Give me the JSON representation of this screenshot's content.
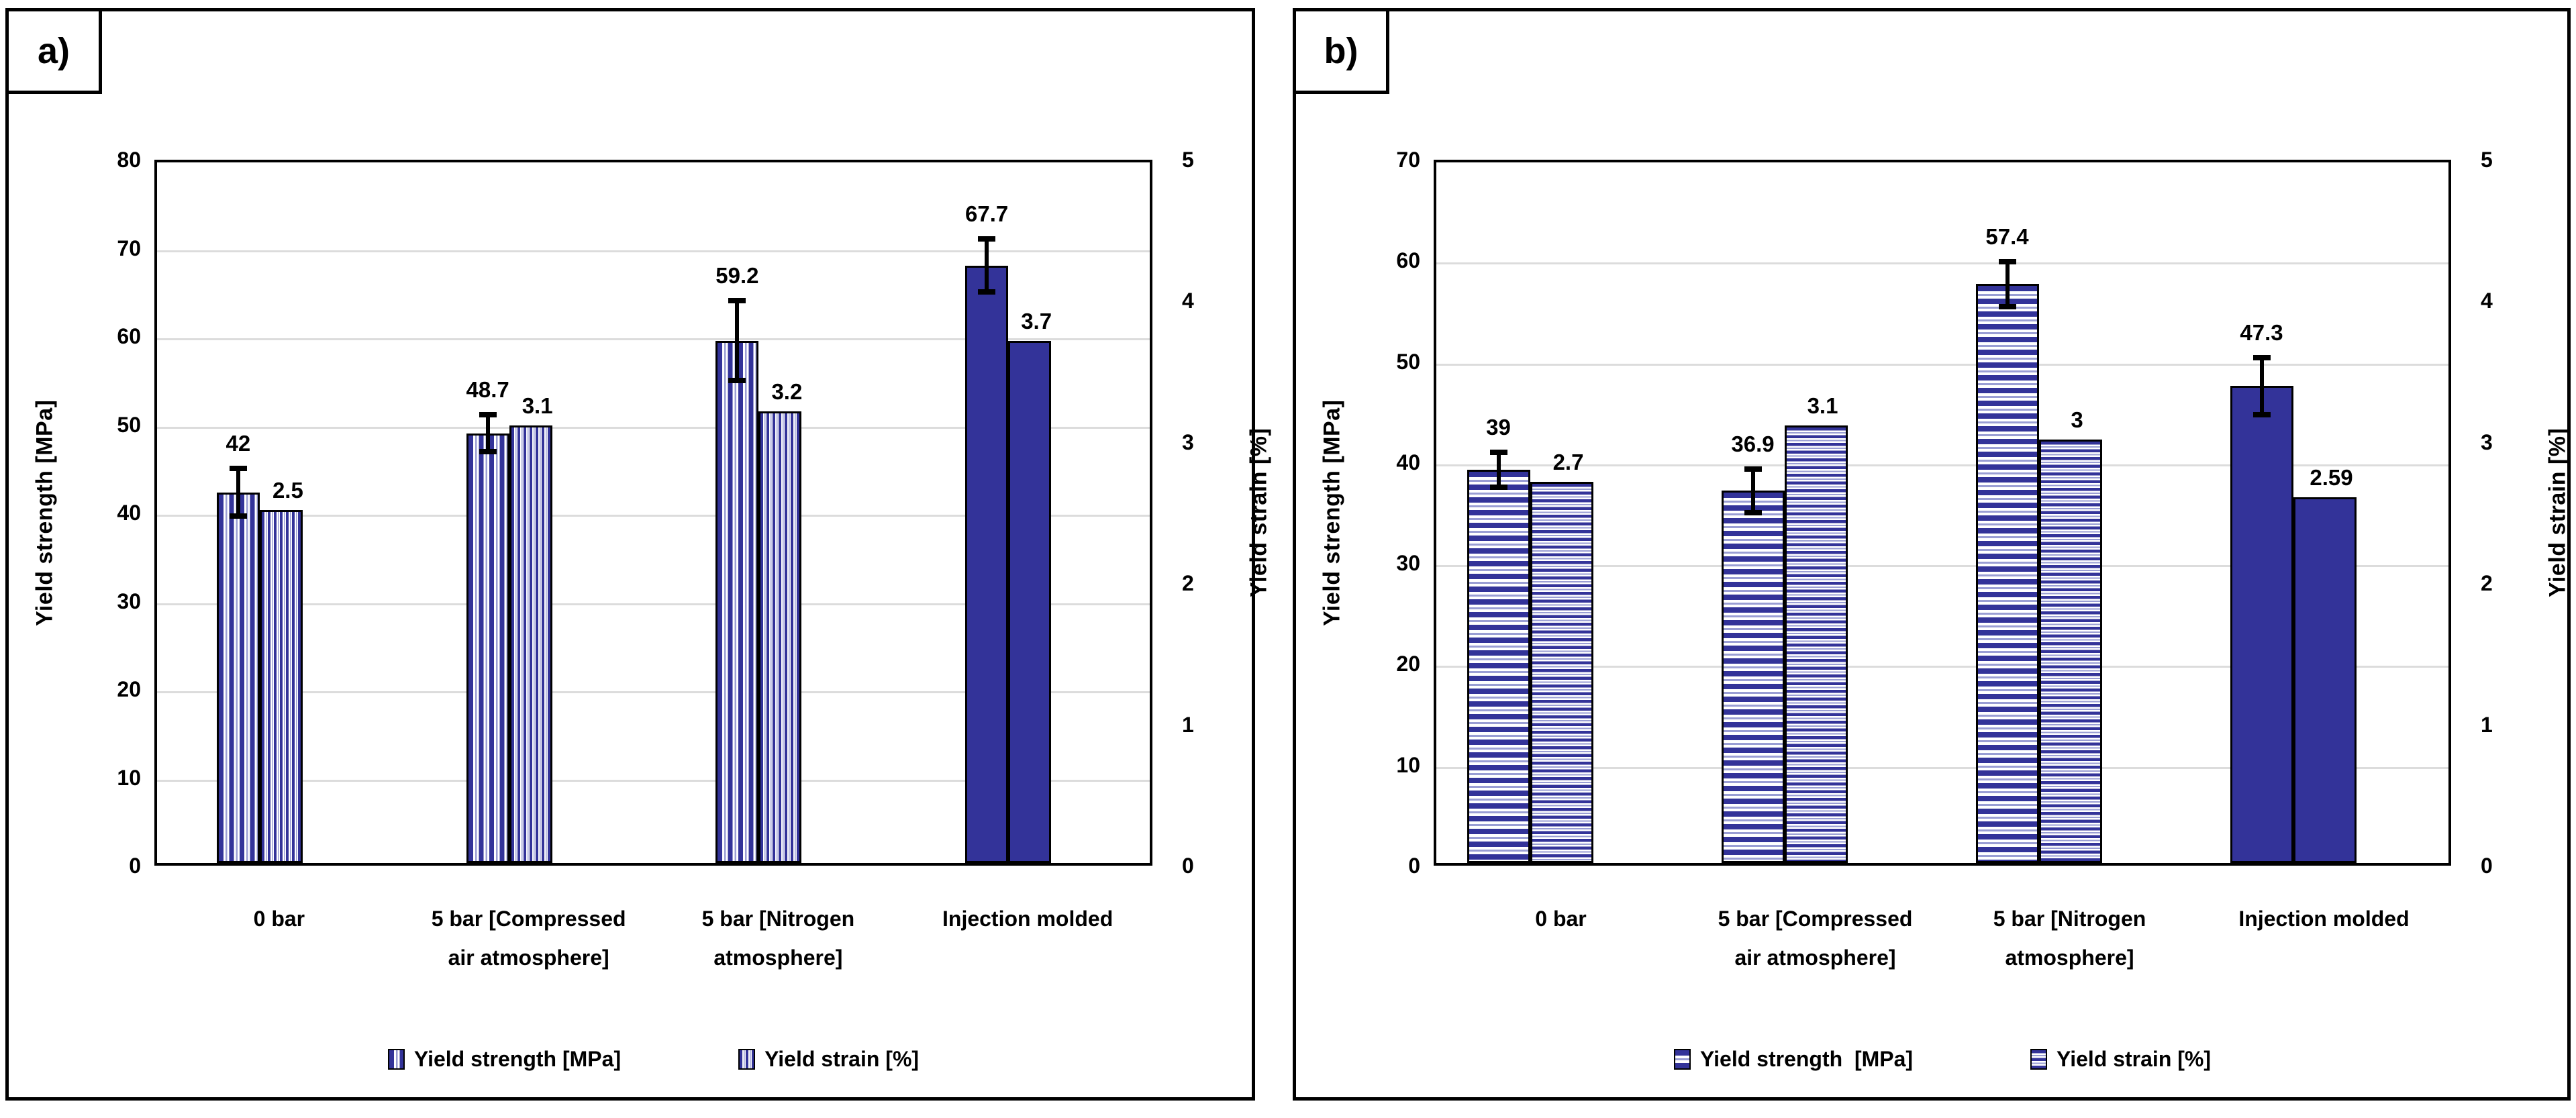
{
  "figure": {
    "type": "two-panel grouped bar figure",
    "panel_labels": [
      "a)",
      "b)"
    ]
  },
  "colors": {
    "bar_blue": "#333399",
    "stripe_accent": "#9a9ed4",
    "gridline": "#dcdcdc",
    "frame": "#000000",
    "background": "#ffffff"
  },
  "chart_data": [
    {
      "type": "bar",
      "panel_label": "a)",
      "categories": [
        "0 bar",
        "5 bar [Compressed\nair atmosphere]",
        "5 bar [Nitrogen\natmosphere]",
        "Injection molded"
      ],
      "series": [
        {
          "name": "Yield strength [MPa]",
          "axis": "left",
          "values": [
            42,
            48.7,
            59.2,
            67.7
          ],
          "value_labels": [
            "42",
            "48.7",
            "59.2",
            "67.7"
          ],
          "errors": [
            3.0,
            2.4,
            4.8,
            3.3
          ],
          "pattern": "stripes-vertical-wide"
        },
        {
          "name": "Yield strain [%]",
          "axis": "right",
          "values": [
            2.5,
            3.1,
            3.2,
            3.7
          ],
          "value_labels": [
            "2.5",
            "3.1",
            "3.2",
            "3.7"
          ],
          "errors": null,
          "pattern": "stripes-vertical-narrow"
        }
      ],
      "solid_fill_category": "Injection molded",
      "axes": {
        "left": {
          "label": "Yield strength [MPa]",
          "min": 0,
          "max": 80,
          "step": 10
        },
        "right": {
          "label": "Yield strain [%]",
          "min": 0,
          "max": 5,
          "step": 1
        }
      },
      "grid": true,
      "legend_position": "bottom",
      "legend": [
        "Yield strength [MPa]",
        "Yield strain [%]"
      ]
    },
    {
      "type": "bar",
      "panel_label": "b)",
      "categories": [
        "0 bar",
        "5 bar [Compressed\nair atmosphere]",
        "5 bar [Nitrogen\natmosphere]",
        "Injection molded"
      ],
      "series": [
        {
          "name": "Yield strength  [MPa]",
          "axis": "left",
          "values": [
            39,
            36.9,
            57.4,
            47.3
          ],
          "value_labels": [
            "39",
            "36.9",
            "57.4",
            "47.3"
          ],
          "errors": [
            2.0,
            2.4,
            2.5,
            3.1
          ],
          "pattern": "stripes-horizontal-wide"
        },
        {
          "name": "Yield strain [%]",
          "axis": "right",
          "values": [
            2.7,
            3.1,
            3,
            2.59
          ],
          "value_labels": [
            "2.7",
            "3.1",
            "3",
            "2.59"
          ],
          "errors": null,
          "pattern": "stripes-horizontal-narrow"
        }
      ],
      "solid_fill_category": "Injection molded",
      "axes": {
        "left": {
          "label": "Yield strength [MPa]",
          "min": 0,
          "max": 70,
          "step": 10
        },
        "right": {
          "label": "Yield strain [%]",
          "min": 0,
          "max": 5,
          "step": 1
        }
      },
      "grid": true,
      "legend_position": "bottom",
      "legend": [
        "Yield strength  [MPa]",
        "Yield strain [%]"
      ]
    }
  ]
}
